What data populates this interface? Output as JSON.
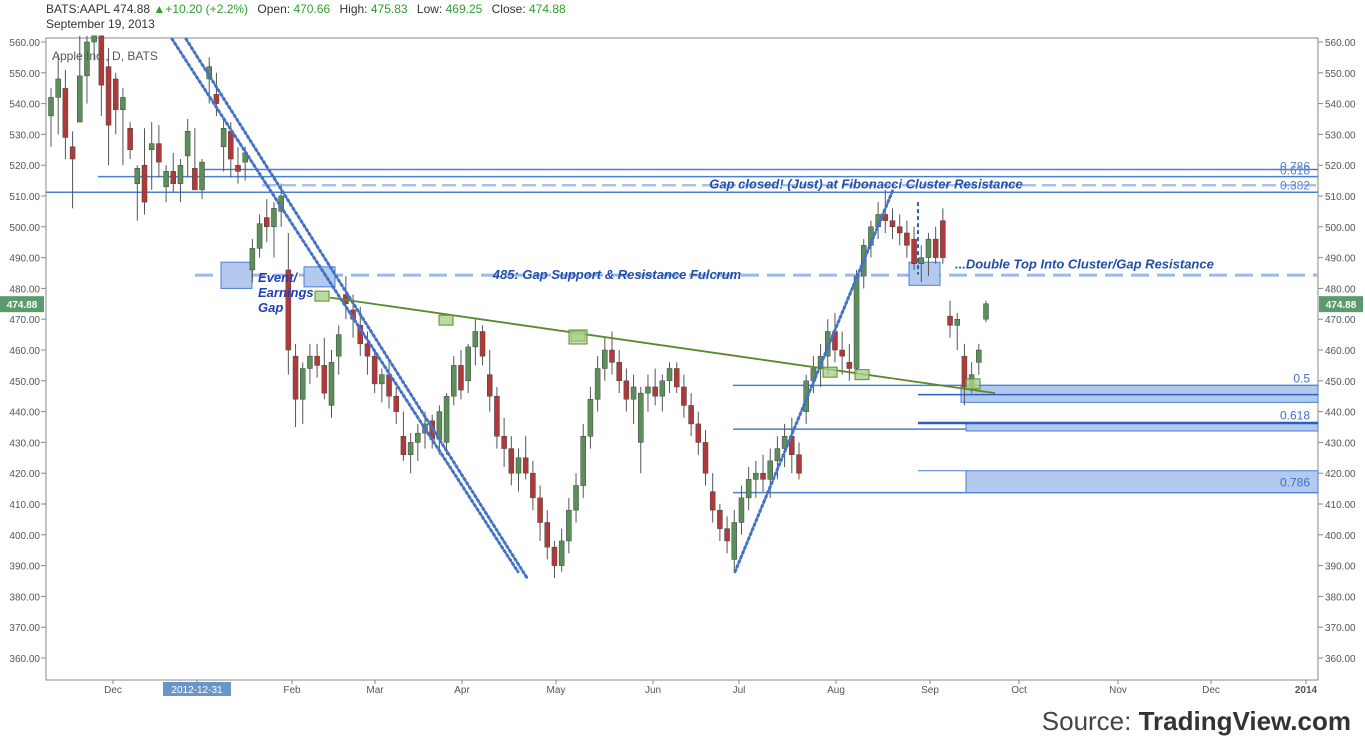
{
  "header": {
    "symbol": "BATS:AAPL",
    "last": "474.88",
    "change_arrow": "▲",
    "change": "+10.20 (+2.2%)",
    "open_label": "Open:",
    "open": "470.66",
    "high_label": "High:",
    "high": "475.83",
    "low_label": "Low:",
    "low": "469.25",
    "close_label": "Close:",
    "close": "474.88",
    "date": "September 19, 2013"
  },
  "source": {
    "prefix": "Source: ",
    "name": "TradingView.com"
  },
  "chart_data": {
    "type": "candlestick",
    "title": "Apple Inc., D, BATS",
    "ylim": [
      350,
      562
    ],
    "y_ticks": [
      "560.00",
      "550.00",
      "540.00",
      "530.00",
      "520.00",
      "510.00",
      "500.00",
      "490.00",
      "480.00",
      "470.00",
      "460.00",
      "450.00",
      "440.00",
      "430.00",
      "420.00",
      "410.00",
      "400.00",
      "390.00",
      "380.00",
      "370.00",
      "360.00"
    ],
    "x_ticks": [
      "Dec",
      "2012-12-31",
      "Feb",
      "Mar",
      "Apr",
      "May",
      "Jun",
      "Jul",
      "Aug",
      "Sep",
      "Oct",
      "Nov",
      "Dec",
      "2014"
    ],
    "last_price_label": "474.88",
    "colors": {
      "up": "#5a8f5a",
      "down": "#b03a3a",
      "trend": "#4472c4",
      "fib": "#4a7fd4",
      "fulcrum": "#9bb8ea",
      "green_line": "#5a8a2a"
    },
    "candles": [
      {
        "o": 536,
        "h": 545,
        "l": 526,
        "c": 542
      },
      {
        "o": 542,
        "h": 556,
        "l": 530,
        "c": 548
      },
      {
        "o": 545,
        "h": 551,
        "l": 522,
        "c": 529
      },
      {
        "o": 526,
        "h": 531,
        "l": 506,
        "c": 522
      },
      {
        "o": 534,
        "h": 562,
        "l": 534,
        "c": 549
      },
      {
        "o": 549,
        "h": 562,
        "l": 540,
        "c": 560
      },
      {
        "o": 560,
        "h": 562,
        "l": 554,
        "c": 562
      },
      {
        "o": 562,
        "h": 562,
        "l": 536,
        "c": 546
      },
      {
        "o": 552,
        "h": 558,
        "l": 520,
        "c": 533
      },
      {
        "o": 548,
        "h": 550,
        "l": 530,
        "c": 538
      },
      {
        "o": 538,
        "h": 545,
        "l": 520,
        "c": 542
      },
      {
        "o": 532,
        "h": 534,
        "l": 522,
        "c": 525
      },
      {
        "o": 514,
        "h": 520,
        "l": 502,
        "c": 519
      },
      {
        "o": 520,
        "h": 532,
        "l": 504,
        "c": 508
      },
      {
        "o": 525,
        "h": 534,
        "l": 512,
        "c": 527
      },
      {
        "o": 527,
        "h": 533,
        "l": 516,
        "c": 521
      },
      {
        "o": 513,
        "h": 520,
        "l": 508,
        "c": 518
      },
      {
        "o": 518,
        "h": 524,
        "l": 511,
        "c": 514
      },
      {
        "o": 514,
        "h": 522,
        "l": 508,
        "c": 520
      },
      {
        "o": 523,
        "h": 535,
        "l": 516,
        "c": 531
      },
      {
        "o": 519,
        "h": 532,
        "l": 512,
        "c": 512
      },
      {
        "o": 512,
        "h": 522,
        "l": 509,
        "c": 521
      },
      {
        "o": 548,
        "h": 555,
        "l": 540,
        "c": 552
      },
      {
        "o": 543,
        "h": 550,
        "l": 536,
        "c": 540
      },
      {
        "o": 526,
        "h": 535,
        "l": 518,
        "c": 532
      },
      {
        "o": 531,
        "h": 534,
        "l": 516,
        "c": 522
      },
      {
        "o": 520,
        "h": 526,
        "l": 514,
        "c": 518
      },
      {
        "o": 521,
        "h": 526,
        "l": 515,
        "c": 524
      },
      {
        "o": 486,
        "h": 496,
        "l": 482,
        "c": 493
      },
      {
        "o": 493,
        "h": 504,
        "l": 490,
        "c": 501
      },
      {
        "o": 503,
        "h": 509,
        "l": 495,
        "c": 500
      },
      {
        "o": 500,
        "h": 508,
        "l": 490,
        "c": 506
      },
      {
        "o": 505,
        "h": 514,
        "l": 500,
        "c": 510
      },
      {
        "o": 486,
        "h": 498,
        "l": 452,
        "c": 460
      },
      {
        "o": 458,
        "h": 462,
        "l": 435,
        "c": 444
      },
      {
        "o": 444,
        "h": 456,
        "l": 436,
        "c": 454
      },
      {
        "o": 454,
        "h": 462,
        "l": 449,
        "c": 458
      },
      {
        "o": 458,
        "h": 462,
        "l": 451,
        "c": 455
      },
      {
        "o": 455,
        "h": 464,
        "l": 444,
        "c": 446
      },
      {
        "o": 442,
        "h": 460,
        "l": 438,
        "c": 456
      },
      {
        "o": 458,
        "h": 468,
        "l": 452,
        "c": 465
      },
      {
        "o": 478,
        "h": 484,
        "l": 470,
        "c": 475
      },
      {
        "o": 473,
        "h": 478,
        "l": 464,
        "c": 470
      },
      {
        "o": 468,
        "h": 474,
        "l": 458,
        "c": 462
      },
      {
        "o": 462,
        "h": 466,
        "l": 452,
        "c": 458
      },
      {
        "o": 458,
        "h": 460,
        "l": 446,
        "c": 449
      },
      {
        "o": 449,
        "h": 454,
        "l": 443,
        "c": 452
      },
      {
        "o": 452,
        "h": 456,
        "l": 441,
        "c": 445
      },
      {
        "o": 445,
        "h": 448,
        "l": 436,
        "c": 440
      },
      {
        "o": 432,
        "h": 440,
        "l": 424,
        "c": 426
      },
      {
        "o": 426,
        "h": 433,
        "l": 420,
        "c": 430
      },
      {
        "o": 430,
        "h": 436,
        "l": 424,
        "c": 433
      },
      {
        "o": 433,
        "h": 440,
        "l": 428,
        "c": 436
      },
      {
        "o": 437,
        "h": 439,
        "l": 428,
        "c": 431
      },
      {
        "o": 431,
        "h": 442,
        "l": 426,
        "c": 440
      },
      {
        "o": 430,
        "h": 446,
        "l": 426,
        "c": 445
      },
      {
        "o": 445,
        "h": 458,
        "l": 442,
        "c": 455
      },
      {
        "o": 455,
        "h": 460,
        "l": 444,
        "c": 447
      },
      {
        "o": 450,
        "h": 462,
        "l": 446,
        "c": 461
      },
      {
        "o": 461,
        "h": 470,
        "l": 455,
        "c": 466
      },
      {
        "o": 466,
        "h": 468,
        "l": 455,
        "c": 458
      },
      {
        "o": 452,
        "h": 460,
        "l": 440,
        "c": 445
      },
      {
        "o": 445,
        "h": 448,
        "l": 428,
        "c": 432
      },
      {
        "o": 432,
        "h": 438,
        "l": 422,
        "c": 428
      },
      {
        "o": 428,
        "h": 432,
        "l": 416,
        "c": 420
      },
      {
        "o": 420,
        "h": 428,
        "l": 414,
        "c": 425
      },
      {
        "o": 425,
        "h": 432,
        "l": 418,
        "c": 420
      },
      {
        "o": 420,
        "h": 424,
        "l": 408,
        "c": 412
      },
      {
        "o": 412,
        "h": 416,
        "l": 398,
        "c": 404
      },
      {
        "o": 404,
        "h": 408,
        "l": 392,
        "c": 396
      },
      {
        "o": 396,
        "h": 398,
        "l": 386,
        "c": 390
      },
      {
        "o": 390,
        "h": 402,
        "l": 388,
        "c": 398
      },
      {
        "o": 398,
        "h": 412,
        "l": 394,
        "c": 408
      },
      {
        "o": 408,
        "h": 420,
        "l": 404,
        "c": 416
      },
      {
        "o": 416,
        "h": 436,
        "l": 412,
        "c": 432
      },
      {
        "o": 432,
        "h": 448,
        "l": 428,
        "c": 444
      },
      {
        "o": 444,
        "h": 458,
        "l": 440,
        "c": 454
      },
      {
        "o": 454,
        "h": 464,
        "l": 450,
        "c": 460
      },
      {
        "o": 460,
        "h": 466,
        "l": 452,
        "c": 456
      },
      {
        "o": 456,
        "h": 460,
        "l": 446,
        "c": 450
      },
      {
        "o": 450,
        "h": 454,
        "l": 440,
        "c": 444
      },
      {
        "o": 444,
        "h": 452,
        "l": 436,
        "c": 448
      },
      {
        "o": 430,
        "h": 448,
        "l": 420,
        "c": 446
      },
      {
        "o": 446,
        "h": 452,
        "l": 440,
        "c": 448
      },
      {
        "o": 448,
        "h": 454,
        "l": 442,
        "c": 445
      },
      {
        "o": 445,
        "h": 452,
        "l": 440,
        "c": 450
      },
      {
        "o": 450,
        "h": 456,
        "l": 446,
        "c": 454
      },
      {
        "o": 454,
        "h": 456,
        "l": 446,
        "c": 448
      },
      {
        "o": 448,
        "h": 452,
        "l": 438,
        "c": 442
      },
      {
        "o": 442,
        "h": 446,
        "l": 432,
        "c": 436
      },
      {
        "o": 436,
        "h": 440,
        "l": 426,
        "c": 430
      },
      {
        "o": 430,
        "h": 434,
        "l": 416,
        "c": 420
      },
      {
        "o": 414,
        "h": 420,
        "l": 404,
        "c": 408
      },
      {
        "o": 408,
        "h": 410,
        "l": 398,
        "c": 402
      },
      {
        "o": 402,
        "h": 406,
        "l": 394,
        "c": 398
      },
      {
        "o": 392,
        "h": 408,
        "l": 388,
        "c": 404
      },
      {
        "o": 404,
        "h": 416,
        "l": 400,
        "c": 412
      },
      {
        "o": 412,
        "h": 422,
        "l": 408,
        "c": 418
      },
      {
        "o": 418,
        "h": 424,
        "l": 412,
        "c": 420
      },
      {
        "o": 420,
        "h": 426,
        "l": 414,
        "c": 418
      },
      {
        "o": 418,
        "h": 428,
        "l": 412,
        "c": 424
      },
      {
        "o": 424,
        "h": 432,
        "l": 418,
        "c": 428
      },
      {
        "o": 428,
        "h": 436,
        "l": 422,
        "c": 432
      },
      {
        "o": 432,
        "h": 438,
        "l": 420,
        "c": 426
      },
      {
        "o": 426,
        "h": 430,
        "l": 418,
        "c": 420
      },
      {
        "o": 440,
        "h": 452,
        "l": 436,
        "c": 450
      },
      {
        "o": 450,
        "h": 458,
        "l": 446,
        "c": 454
      },
      {
        "o": 454,
        "h": 462,
        "l": 448,
        "c": 458
      },
      {
        "o": 458,
        "h": 470,
        "l": 452,
        "c": 466
      },
      {
        "o": 466,
        "h": 472,
        "l": 456,
        "c": 460
      },
      {
        "o": 460,
        "h": 466,
        "l": 452,
        "c": 458
      },
      {
        "o": 456,
        "h": 462,
        "l": 450,
        "c": 454
      },
      {
        "o": 454,
        "h": 486,
        "l": 452,
        "c": 484
      },
      {
        "o": 484,
        "h": 496,
        "l": 480,
        "c": 494
      },
      {
        "o": 494,
        "h": 502,
        "l": 490,
        "c": 500
      },
      {
        "o": 500,
        "h": 508,
        "l": 496,
        "c": 504
      },
      {
        "o": 504,
        "h": 512,
        "l": 498,
        "c": 502
      },
      {
        "o": 502,
        "h": 506,
        "l": 496,
        "c": 500
      },
      {
        "o": 500,
        "h": 504,
        "l": 494,
        "c": 498
      },
      {
        "o": 498,
        "h": 502,
        "l": 490,
        "c": 494
      },
      {
        "o": 496,
        "h": 500,
        "l": 486,
        "c": 488
      },
      {
        "o": 488,
        "h": 494,
        "l": 482,
        "c": 490
      },
      {
        "o": 490,
        "h": 498,
        "l": 484,
        "c": 496
      },
      {
        "o": 496,
        "h": 500,
        "l": 488,
        "c": 490
      },
      {
        "o": 502,
        "h": 506,
        "l": 488,
        "c": 490
      },
      {
        "o": 471,
        "h": 476,
        "l": 464,
        "c": 468
      },
      {
        "o": 468,
        "h": 472,
        "l": 460,
        "c": 470
      },
      {
        "o": 458,
        "h": 462,
        "l": 442,
        "c": 448
      },
      {
        "o": 448,
        "h": 456,
        "l": 446,
        "c": 452
      },
      {
        "o": 456,
        "h": 462,
        "l": 452,
        "c": 460
      },
      {
        "o": 470,
        "h": 476,
        "l": 469,
        "c": 475
      }
    ],
    "green_trendline": [
      [
        330,
        477
      ],
      [
        995,
        446
      ]
    ],
    "annotations": {
      "gap_closed": "Gap closed! (Just) at Fibonacci Cluster Resistance",
      "fulcrum": "485: Gap Support & Resistance Fulcrum",
      "double_top": "...Double Top Into Cluster/Gap Resistance",
      "event_gap": [
        "Event/",
        "Earnings",
        "Gap"
      ],
      "fib_upper": [
        "0.786",
        "0.618",
        "0.382"
      ],
      "fib_lower": [
        "0.5",
        "0.618",
        "0.786"
      ]
    }
  }
}
